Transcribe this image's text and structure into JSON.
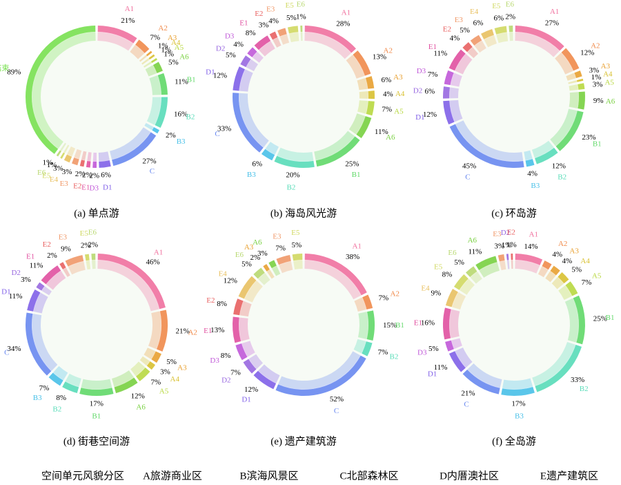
{
  "chart_data": [
    {
      "type": "chord",
      "caption": "(a) 单点游",
      "categories": [
        "A1",
        "A2",
        "A3",
        "A4",
        "A5",
        "A6",
        "B1",
        "B2",
        "B3",
        "C",
        "D1",
        "D3",
        "E1",
        "E2",
        "E3",
        "E4",
        "E5",
        "E6",
        "结束"
      ],
      "values": [
        21,
        7,
        1,
        1,
        1,
        5,
        11,
        16,
        2,
        27,
        6,
        2,
        2,
        2,
        3,
        3,
        1,
        1,
        89
      ],
      "value_labels": [
        "21%",
        "7%",
        "1%",
        "1%",
        "1%",
        "5%",
        "11%",
        "16%",
        "2%",
        "27%",
        "6%",
        "2%",
        "2%",
        "2%",
        "3%",
        "3%",
        "1%",
        "1%",
        "89%"
      ]
    },
    {
      "type": "chord",
      "caption": "(b) 海岛风光游",
      "categories": [
        "A1",
        "A2",
        "A3",
        "A4",
        "A5",
        "A6",
        "B1",
        "B2",
        "B3",
        "C",
        "D1",
        "D2",
        "D3",
        "E1",
        "E2",
        "E3",
        "E5",
        "E6"
      ],
      "values": [
        28,
        13,
        6,
        4,
        7,
        11,
        25,
        20,
        6,
        33,
        12,
        5,
        4,
        8,
        3,
        4,
        5,
        1
      ],
      "value_labels": [
        "28%",
        "13%",
        "6%",
        "4%",
        "7%",
        "11%",
        "25%",
        "20%",
        "6%",
        "33%",
        "12%",
        "5%",
        "4%",
        "8%",
        "3%",
        "4%",
        "5%",
        "1%"
      ]
    },
    {
      "type": "chord",
      "caption": "(c) 环岛游",
      "categories": [
        "A1",
        "A2",
        "A3",
        "A4",
        "A5",
        "A6",
        "B1",
        "B2",
        "B3",
        "C",
        "D1",
        "D2",
        "D3",
        "E1",
        "E2",
        "E3",
        "E4",
        "E5",
        "E6"
      ],
      "values": [
        27,
        12,
        3,
        1,
        3,
        9,
        23,
        12,
        4,
        45,
        12,
        6,
        7,
        11,
        4,
        5,
        6,
        6,
        2
      ],
      "value_labels": [
        "27%",
        "12%",
        "3%",
        "1%",
        "3%",
        "9%",
        "23%",
        "12%",
        "4%",
        "45%",
        "12%",
        "6%",
        "7%",
        "11%",
        "4%",
        "5%",
        "6%",
        "6%",
        "2%"
      ]
    },
    {
      "type": "chord",
      "caption": "(d) 街巷空间游",
      "categories": [
        "A1",
        "A2",
        "A3",
        "A4",
        "A5",
        "A6",
        "B1",
        "B2",
        "B3",
        "C",
        "D1",
        "D2",
        "E1",
        "E2",
        "E3",
        "E5",
        "E6"
      ],
      "values": [
        46,
        21,
        5,
        3,
        7,
        12,
        17,
        8,
        7,
        34,
        11,
        3,
        11,
        2,
        9,
        2,
        2
      ],
      "value_labels": [
        "46%",
        "21%",
        "5%",
        "3%",
        "7%",
        "12%",
        "17%",
        "8%",
        "7%",
        "34%",
        "11%",
        "3%",
        "11%",
        "2%",
        "9%",
        "2%",
        "2%"
      ]
    },
    {
      "type": "chord",
      "caption": "(e) 遗产建筑游",
      "categories": [
        "A1",
        "A2",
        "B1",
        "B2",
        "C",
        "D1",
        "D2",
        "D3",
        "E1",
        "E2",
        "E4",
        "E6",
        "A3",
        "A6",
        "E3",
        "E5"
      ],
      "values": [
        38,
        7,
        15,
        7,
        52,
        12,
        7,
        8,
        13,
        8,
        12,
        5,
        2,
        3,
        7,
        5
      ],
      "value_labels": [
        "38%",
        "7%",
        "15%",
        "7%",
        "52%",
        "12%",
        "7%",
        "8%",
        "13%",
        "8%",
        "12%",
        "5%",
        "2%",
        "3%",
        "7%",
        "5%"
      ]
    },
    {
      "type": "chord",
      "caption": "(f) 全岛游",
      "categories": [
        "A1",
        "A2",
        "A3",
        "A4",
        "A5",
        "B1",
        "B2",
        "B3",
        "C",
        "D1",
        "D3",
        "E1",
        "E4",
        "E5",
        "E6",
        "A6",
        "E3",
        "D2",
        "E2"
      ],
      "values": [
        14,
        4,
        4,
        5,
        7,
        25,
        33,
        17,
        21,
        11,
        5,
        16,
        9,
        8,
        5,
        11,
        3,
        1,
        1
      ],
      "value_labels": [
        "14%",
        "4%",
        "4%",
        "5%",
        "7%",
        "25%",
        "33%",
        "17%",
        "21%",
        "11%",
        "5%",
        "16%",
        "9%",
        "8%",
        "5%",
        "11%",
        "3%",
        "1%",
        "1%"
      ]
    }
  ],
  "palette": {
    "A1": "#f0709e",
    "A2": "#f08a4a",
    "A3": "#e8a030",
    "A4": "#d8c030",
    "A5": "#b8d840",
    "A6": "#78d040",
    "B1": "#60d868",
    "B2": "#58dcb8",
    "B3": "#48c0e8",
    "C": "#6888f0",
    "D1": "#8060e8",
    "D2": "#9868e0",
    "D3": "#c058d8",
    "E1": "#e050a0",
    "E2": "#e86060",
    "E3": "#f09868",
    "E4": "#e8c060",
    "E5": "#d0d860",
    "E6": "#b8d870",
    "结束": "#78e050"
  },
  "legend": [
    "空间单元风貌分区",
    "A旅游商业区",
    "B滨海风景区",
    "C北部森林区",
    "D内厝澳社区",
    "E遗产建筑区"
  ]
}
